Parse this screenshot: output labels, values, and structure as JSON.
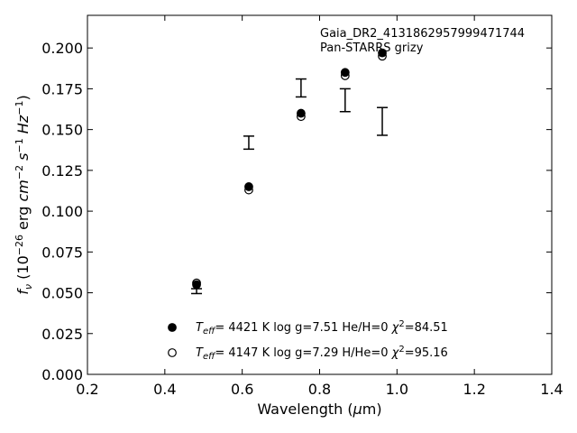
{
  "chart_data": {
    "type": "scatter",
    "xlabel_parts": {
      "main": "Wavelength (",
      "mu": "μ",
      "unit": "m)"
    },
    "ylabel_parts": {
      "f": "f",
      "nu": "ν",
      "open": " (10",
      "exp1": "−26",
      "erg": " erg ",
      "cm": "cm",
      "exp2": "−2",
      "s": " s",
      "exp3": "−1",
      "hz": " Hz",
      "exp4": "−1",
      "close": ")"
    },
    "xlim": [
      0.2,
      1.4
    ],
    "ylim": [
      0.0,
      0.22
    ],
    "xticks": [
      0.2,
      0.4,
      0.6,
      0.8,
      1.0,
      1.2,
      1.4
    ],
    "xtick_labels": [
      "0.2",
      "0.4",
      "0.6",
      "0.8",
      "1.0",
      "1.2",
      "1.4"
    ],
    "yticks": [
      0.0,
      0.025,
      0.05,
      0.075,
      0.1,
      0.125,
      0.15,
      0.175,
      0.2
    ],
    "ytick_labels": [
      "0.000",
      "0.025",
      "0.050",
      "0.075",
      "0.100",
      "0.125",
      "0.150",
      "0.175",
      "0.200"
    ],
    "annotation": [
      "Gaia_DR2_4131862957999471744",
      "Pan-STARRS grizy"
    ],
    "observed": {
      "x": [
        0.482,
        0.617,
        0.752,
        0.866,
        0.962
      ],
      "y": [
        0.051,
        0.142,
        0.1755,
        0.168,
        0.155
      ],
      "yerr": [
        0.0015,
        0.004,
        0.0055,
        0.007,
        0.0085
      ]
    },
    "series": [
      {
        "marker": "filled",
        "x": [
          0.482,
          0.617,
          0.752,
          0.866,
          0.962
        ],
        "y": [
          0.055,
          0.115,
          0.16,
          0.185,
          0.197
        ],
        "label": {
          "T": "T",
          "sub": "eff",
          "rest": "=  4421 K  log g=7.51  He/H=0  ",
          "chi": "χ",
          "sup": "2",
          "val": "=84.51"
        }
      },
      {
        "marker": "open",
        "x": [
          0.482,
          0.617,
          0.752,
          0.866,
          0.962
        ],
        "y": [
          0.056,
          0.113,
          0.158,
          0.183,
          0.195
        ],
        "label": {
          "T": "T",
          "sub": "eff",
          "rest": "=  4147 K  log g=7.29  H/He=0  ",
          "chi": "χ",
          "sup": "2",
          "val": "=95.16"
        }
      }
    ],
    "legend_position": "lower-center",
    "grid": false
  }
}
